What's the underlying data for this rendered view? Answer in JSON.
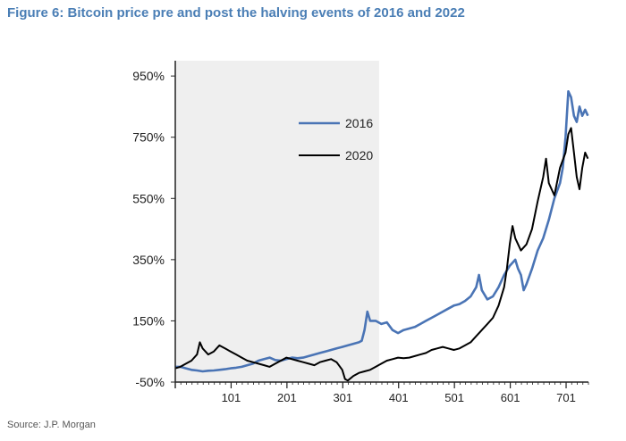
{
  "title": "Figure 6: Bitcoin price pre and post the halving events of 2016 and 2022",
  "source": "Source: J.P. Morgan",
  "chart_data": {
    "type": "line",
    "title": "Figure 6: Bitcoin price pre and post the halving events of 2016 and 2022",
    "xlabel": "",
    "ylabel": "",
    "xlim": [
      1,
      741
    ],
    "ylim": [
      -50,
      1000
    ],
    "yticks": [
      -50,
      150,
      350,
      550,
      750,
      950
    ],
    "ytick_labels": [
      "-50%",
      "150%",
      "350%",
      "550%",
      "750%",
      "950%"
    ],
    "xticks": [
      101,
      201,
      301,
      401,
      501,
      601,
      701
    ],
    "xtick_labels": [
      "101",
      "201",
      "301",
      "401",
      "501",
      "601",
      "701"
    ],
    "shaded_region": {
      "x_start": 1,
      "x_end": 366,
      "color": "#efefef"
    },
    "grid": false,
    "legend_position": "upper-center",
    "series": [
      {
        "name": "2016",
        "color": "#4a74b5",
        "x": [
          1,
          10,
          20,
          30,
          40,
          50,
          60,
          70,
          80,
          90,
          100,
          110,
          120,
          130,
          140,
          150,
          160,
          170,
          180,
          190,
          200,
          210,
          220,
          230,
          240,
          250,
          260,
          270,
          280,
          290,
          300,
          310,
          320,
          330,
          335,
          340,
          345,
          350,
          360,
          370,
          380,
          390,
          400,
          410,
          420,
          430,
          440,
          450,
          460,
          470,
          480,
          490,
          500,
          510,
          520,
          530,
          540,
          545,
          550,
          560,
          570,
          580,
          590,
          600,
          610,
          615,
          620,
          625,
          630,
          640,
          650,
          660,
          670,
          680,
          690,
          695,
          700,
          705,
          710,
          715,
          720,
          725,
          730,
          735,
          740
        ],
        "y": [
          0,
          0,
          -5,
          -10,
          -12,
          -15,
          -13,
          -12,
          -10,
          -8,
          -5,
          -3,
          0,
          5,
          10,
          20,
          25,
          30,
          22,
          20,
          25,
          30,
          28,
          30,
          35,
          40,
          45,
          50,
          55,
          60,
          65,
          70,
          75,
          80,
          85,
          120,
          180,
          150,
          150,
          140,
          145,
          120,
          110,
          120,
          125,
          130,
          140,
          150,
          160,
          170,
          180,
          190,
          200,
          205,
          215,
          230,
          260,
          300,
          250,
          220,
          230,
          260,
          300,
          330,
          350,
          320,
          300,
          250,
          270,
          320,
          380,
          420,
          480,
          550,
          600,
          650,
          750,
          900,
          880,
          820,
          800,
          850,
          820,
          840,
          820
        ]
      },
      {
        "name": "2020",
        "color": "#000000",
        "x": [
          1,
          10,
          20,
          30,
          40,
          45,
          50,
          55,
          60,
          70,
          80,
          90,
          100,
          110,
          120,
          130,
          140,
          150,
          160,
          170,
          180,
          190,
          200,
          210,
          220,
          230,
          240,
          250,
          260,
          270,
          280,
          290,
          300,
          305,
          310,
          320,
          330,
          340,
          350,
          360,
          370,
          380,
          390,
          400,
          410,
          420,
          430,
          440,
          450,
          460,
          470,
          480,
          490,
          500,
          510,
          520,
          530,
          540,
          550,
          560,
          570,
          580,
          590,
          595,
          600,
          605,
          610,
          620,
          630,
          640,
          650,
          660,
          665,
          670,
          680,
          690,
          700,
          705,
          710,
          715,
          720,
          725,
          730,
          735,
          740
        ],
        "y": [
          -5,
          0,
          10,
          20,
          40,
          80,
          60,
          50,
          40,
          50,
          70,
          60,
          50,
          40,
          30,
          20,
          15,
          10,
          5,
          0,
          10,
          20,
          30,
          25,
          20,
          15,
          10,
          5,
          15,
          20,
          25,
          15,
          -10,
          -40,
          -45,
          -30,
          -20,
          -15,
          -10,
          0,
          10,
          20,
          25,
          30,
          28,
          30,
          35,
          40,
          45,
          55,
          60,
          65,
          60,
          55,
          60,
          70,
          80,
          100,
          120,
          140,
          160,
          200,
          260,
          320,
          400,
          460,
          420,
          380,
          400,
          450,
          540,
          620,
          680,
          600,
          560,
          650,
          700,
          760,
          780,
          700,
          620,
          580,
          650,
          700,
          680
        ]
      }
    ]
  }
}
